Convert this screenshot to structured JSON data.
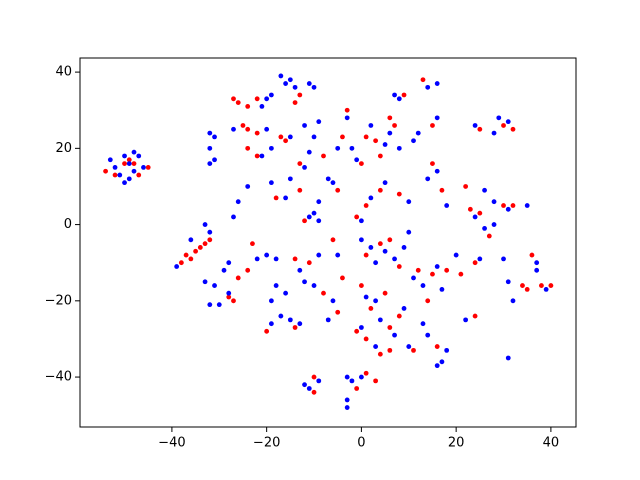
{
  "chart_data": {
    "type": "scatter",
    "xlim": [
      -59.4,
      45.3
    ],
    "ylim": [
      -53.1,
      43.7
    ],
    "xticks": [
      {
        "value": -40,
        "label": "−40"
      },
      {
        "value": -20,
        "label": "−20"
      },
      0,
      20,
      40
    ],
    "yticks": [
      {
        "value": -40,
        "label": "−40"
      },
      {
        "value": -20,
        "label": "−20"
      },
      0,
      20,
      40
    ],
    "grid": false,
    "series": [
      {
        "color": "#ff0000",
        "x": [
          -54,
          -52,
          -50,
          -49,
          -48,
          -45,
          -47,
          -38,
          -37,
          -36,
          -34,
          -33,
          -32,
          -35,
          -28,
          -27,
          -26,
          -24,
          -27,
          -26,
          -24,
          -22,
          -13,
          -14,
          -25,
          -24,
          -22,
          -24,
          -22,
          -23,
          -20,
          -14,
          -18,
          -13,
          -17,
          -16,
          -13,
          -14,
          -11,
          -8,
          -12,
          -10,
          -10,
          -8,
          -5,
          -4,
          -3,
          -6,
          -4,
          -5,
          -1,
          1,
          3,
          0,
          1,
          3,
          4,
          6,
          7,
          -1,
          1,
          4,
          8,
          1,
          4,
          6,
          8,
          0,
          2,
          5,
          6,
          8,
          -1,
          1,
          4,
          6,
          9,
          13,
          15,
          12,
          14,
          15,
          18,
          11,
          16,
          15,
          17,
          21,
          24,
          24,
          22,
          23,
          25,
          27,
          30,
          32,
          25,
          30,
          32,
          34,
          35,
          36,
          38,
          40
        ],
        "y": [
          14,
          13,
          16,
          17,
          16,
          15,
          13,
          -10,
          -8,
          -9,
          -6,
          -5,
          -4,
          -7,
          -19,
          -20,
          -14,
          -12,
          33,
          32,
          31,
          33,
          34,
          32,
          26,
          25,
          24,
          20,
          18,
          -5,
          -28,
          -27,
          7,
          9,
          23,
          22,
          16,
          -9,
          -10,
          -18,
          1,
          -40,
          -44,
          18,
          9,
          23,
          30,
          -4,
          -14,
          -23,
          -43,
          -39,
          -41,
          16,
          23,
          22,
          18,
          28,
          26,
          2,
          5,
          9,
          8,
          -8,
          -5,
          -4,
          -11,
          -16,
          -22,
          -18,
          -27,
          -24,
          -28,
          -30,
          -34,
          -33,
          34,
          38,
          26,
          -12,
          -20,
          -13,
          -12,
          -33,
          -32,
          16,
          9,
          -13,
          -24,
          -10,
          10,
          4,
          3,
          -3,
          5,
          5,
          25,
          26,
          25,
          -16,
          -17,
          -8,
          -16,
          -16
        ]
      },
      {
        "color": "#0000ff",
        "x": [
          -53,
          -52,
          -50,
          -49,
          -48,
          -47,
          -51,
          -49,
          -48,
          -46,
          -50,
          -39,
          -33,
          -32,
          -36,
          -32,
          -31,
          -32,
          -31,
          -32,
          -33,
          -31,
          -32,
          -30,
          -28,
          -29,
          -28,
          -21,
          -20,
          -19,
          -17,
          -16,
          -15,
          -14,
          -11,
          -10,
          -27,
          -20,
          -21,
          -19,
          -24,
          -26,
          -27,
          -22,
          -20,
          -18,
          -19,
          -18,
          -16,
          -19,
          -17,
          -15,
          -13,
          -19,
          -16,
          -15,
          -15,
          -12,
          -11,
          -10,
          -12,
          -9,
          -13,
          -12,
          -9,
          -10,
          -11,
          -10,
          -9,
          -9,
          -11,
          -9,
          -12,
          -7,
          -6,
          -5,
          -3,
          -5,
          -6,
          -7,
          -3,
          -2,
          -3,
          -3,
          0,
          -2,
          -1,
          2,
          5,
          6,
          8,
          0,
          2,
          5,
          10,
          0,
          2,
          3,
          5,
          7,
          9,
          10,
          1,
          3,
          4,
          7,
          9,
          0,
          3,
          7,
          8,
          11,
          12,
          14,
          16,
          16,
          11,
          13,
          16,
          17,
          10,
          13,
          14,
          17,
          18,
          16,
          16,
          18,
          14,
          20,
          22,
          25,
          24,
          26,
          28,
          26,
          28,
          31,
          24,
          28,
          29,
          31,
          31,
          31,
          32,
          30,
          37,
          39,
          37,
          35
        ],
        "y": [
          17,
          15,
          18,
          16,
          19,
          18,
          13,
          12,
          14,
          15,
          11,
          -11,
          0,
          -2,
          -4,
          24,
          23,
          20,
          17,
          16,
          -15,
          -16,
          -21,
          -21,
          -18,
          -12,
          -10,
          31,
          33,
          34,
          39,
          37,
          38,
          36,
          37,
          36,
          25,
          25,
          18,
          20,
          10,
          6,
          2,
          -9,
          -8,
          -9,
          -20,
          -16,
          -18,
          -26,
          -24,
          -25,
          -26,
          11,
          7,
          12,
          23,
          15,
          19,
          23,
          26,
          27,
          -12,
          -15,
          -8,
          -16,
          2,
          3,
          1,
          6,
          -43,
          -41,
          -42,
          12,
          11,
          20,
          28,
          -8,
          -20,
          -25,
          -40,
          -41,
          -46,
          -48,
          -40,
          20,
          17,
          26,
          21,
          24,
          20,
          1,
          7,
          11,
          6,
          -4,
          -6,
          -10,
          -7,
          -9,
          -6,
          -2,
          -19,
          -20,
          -25,
          -29,
          -22,
          -27,
          -32,
          34,
          33,
          22,
          24,
          36,
          37,
          28,
          -14,
          -16,
          -11,
          -17,
          -32,
          -26,
          -29,
          -36,
          -33,
          -37,
          14,
          5,
          12,
          -8,
          -25,
          -9,
          2,
          -1,
          0,
          9,
          6,
          4,
          26,
          24,
          28,
          27,
          -15,
          -35,
          -20,
          -9,
          -10,
          -17,
          -12,
          5
        ]
      }
    ]
  }
}
